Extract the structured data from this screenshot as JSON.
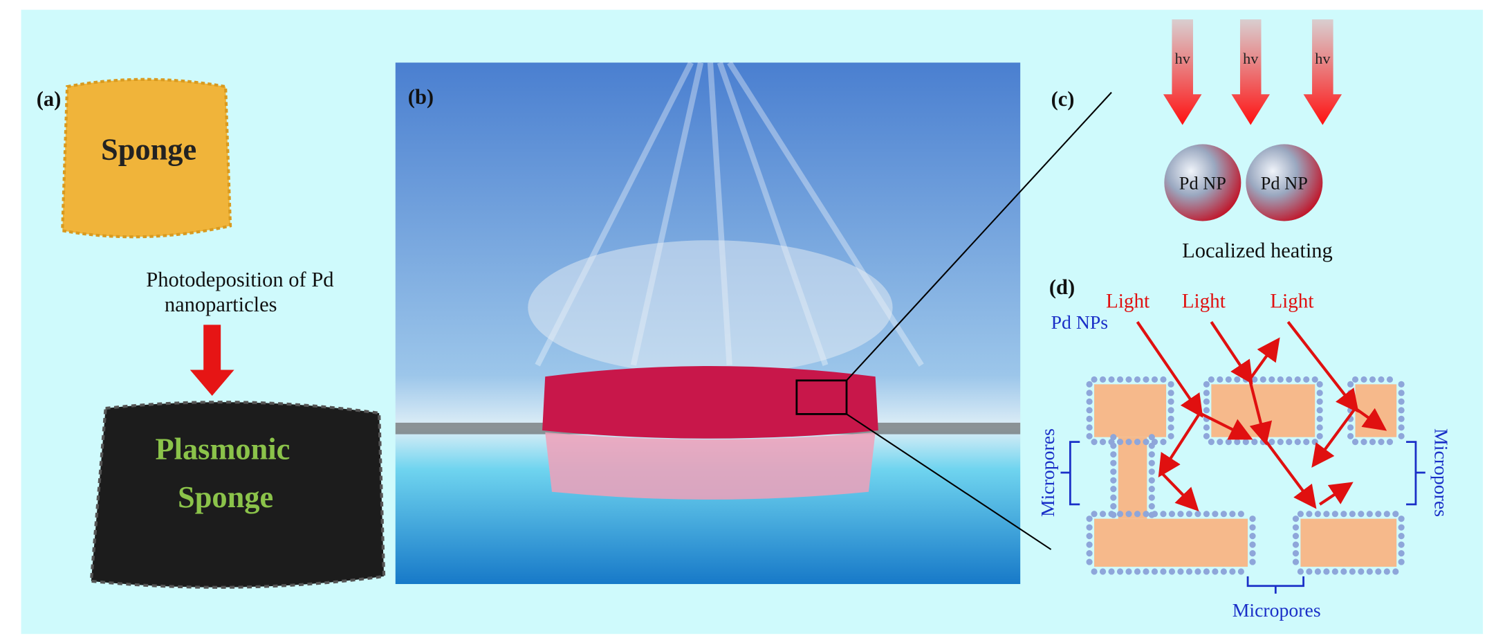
{
  "panels": {
    "a": {
      "label": "(a)",
      "sponge": "Sponge",
      "caption": [
        "Photodeposition of Pd",
        "nanoparticles"
      ],
      "result": [
        "Plasmonic",
        "Sponge"
      ]
    },
    "b": {
      "label": "(b)"
    },
    "c": {
      "label": "(c)",
      "photons": [
        "hv",
        "hv",
        "hv"
      ],
      "particles": [
        "Pd NP",
        "Pd NP"
      ],
      "caption": "Localized heating"
    },
    "d": {
      "label": "(d)",
      "light": [
        "Light",
        "Light",
        "Light"
      ],
      "particles": "Pd NPs",
      "pores": [
        "Micropores",
        "Micropores",
        "Micropores"
      ]
    }
  }
}
